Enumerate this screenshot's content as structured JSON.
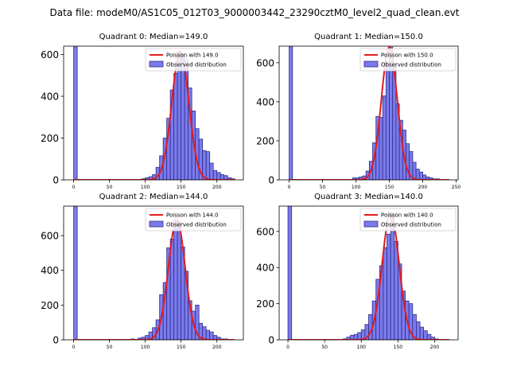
{
  "figure": {
    "suptitle": "Data file: modeM0/AS1C05_012T03_9000003442_23290cztM0_level2_quad_clean.evt"
  },
  "colors": {
    "bar_fill": "#7b7bec",
    "bar_edge": "#2c2c8c",
    "fit_line": "#e41a1c"
  },
  "chart_data": [
    {
      "type": "bar",
      "title": "Quadrant 0: Median=149.0",
      "fit_label": "Poisson with 149.0",
      "hist_label": "Observed distribution",
      "legend": "top-right",
      "bin_width": 5,
      "xlim": [
        -14,
        237
      ],
      "ylim": [
        0,
        640
      ],
      "xticks": [
        0,
        50,
        100,
        150,
        200
      ],
      "yticks": [
        0,
        200,
        400,
        600
      ],
      "bin_starts": [
        0,
        95,
        100,
        105,
        110,
        115,
        120,
        125,
        130,
        135,
        140,
        145,
        150,
        155,
        160,
        165,
        170,
        175,
        180,
        185,
        190,
        195,
        200,
        205,
        210,
        215,
        220
      ],
      "values": [
        640,
        5,
        10,
        15,
        25,
        60,
        115,
        200,
        295,
        430,
        510,
        615,
        600,
        575,
        440,
        330,
        245,
        195,
        140,
        135,
        80,
        45,
        35,
        25,
        20,
        10,
        5
      ],
      "fit_mu": 149.0,
      "fit_scale": 5.8,
      "fit_range": [
        0,
        225
      ]
    },
    {
      "type": "bar",
      "title": "Quadrant 1: Median=150.0",
      "fit_label": "Poisson with 150.0",
      "hist_label": "Observed distribution",
      "legend": "top-right",
      "bin_width": 5,
      "xlim": [
        -15,
        253
      ],
      "ylim": [
        0,
        685
      ],
      "xticks": [
        0,
        50,
        100,
        150,
        200,
        250
      ],
      "yticks": [
        0,
        200,
        400,
        600
      ],
      "bin_starts": [
        0,
        95,
        100,
        105,
        110,
        115,
        120,
        125,
        130,
        135,
        140,
        145,
        150,
        155,
        160,
        165,
        170,
        175,
        180,
        185,
        190,
        195,
        200,
        205,
        210,
        215,
        220
      ],
      "values": [
        685,
        10,
        10,
        15,
        20,
        45,
        95,
        190,
        325,
        320,
        430,
        605,
        680,
        595,
        390,
        305,
        255,
        185,
        145,
        90,
        55,
        40,
        25,
        15,
        10,
        5,
        5
      ],
      "fit_mu": 150.0,
      "fit_scale": 5.8,
      "fit_range": [
        0,
        240
      ]
    },
    {
      "type": "bar",
      "title": "Quadrant 2: Median=144.0",
      "fit_label": "Poisson with 144.0",
      "hist_label": "Observed distribution",
      "legend": "top-right",
      "bin_width": 5,
      "xlim": [
        -14,
        237
      ],
      "ylim": [
        0,
        770
      ],
      "xticks": [
        0,
        50,
        100,
        150,
        200
      ],
      "yticks": [
        0,
        200,
        400,
        600
      ],
      "bin_starts": [
        0,
        80,
        90,
        95,
        100,
        105,
        110,
        115,
        120,
        125,
        130,
        135,
        140,
        145,
        150,
        155,
        160,
        165,
        170,
        175,
        180,
        185,
        190,
        195,
        200,
        205,
        210
      ],
      "values": [
        770,
        5,
        10,
        15,
        25,
        45,
        70,
        115,
        260,
        330,
        530,
        580,
        690,
        680,
        535,
        395,
        225,
        165,
        200,
        95,
        75,
        55,
        45,
        25,
        15,
        5,
        5
      ],
      "fit_mu": 144.0,
      "fit_scale": 6.0,
      "fit_range": [
        0,
        225
      ]
    },
    {
      "type": "bar",
      "title": "Quadrant 3: Median=140.0",
      "fit_label": "Poisson with 140.0",
      "hist_label": "Observed distribution",
      "legend": "top-right",
      "bin_width": 5,
      "xlim": [
        -12,
        232
      ],
      "ylim": [
        0,
        740
      ],
      "xticks": [
        0,
        50,
        100,
        150,
        200
      ],
      "yticks": [
        0,
        200,
        400,
        600
      ],
      "bin_starts": [
        0,
        75,
        80,
        85,
        90,
        95,
        100,
        105,
        110,
        115,
        120,
        125,
        130,
        135,
        140,
        145,
        150,
        155,
        160,
        165,
        170,
        175,
        180,
        185,
        190,
        195,
        200
      ],
      "values": [
        740,
        5,
        15,
        25,
        30,
        40,
        55,
        85,
        140,
        215,
        335,
        410,
        510,
        585,
        700,
        545,
        420,
        270,
        215,
        200,
        140,
        100,
        70,
        50,
        30,
        15,
        5
      ],
      "fit_mu": 140.0,
      "fit_scale": 6.2,
      "fit_range": [
        0,
        220
      ]
    }
  ]
}
